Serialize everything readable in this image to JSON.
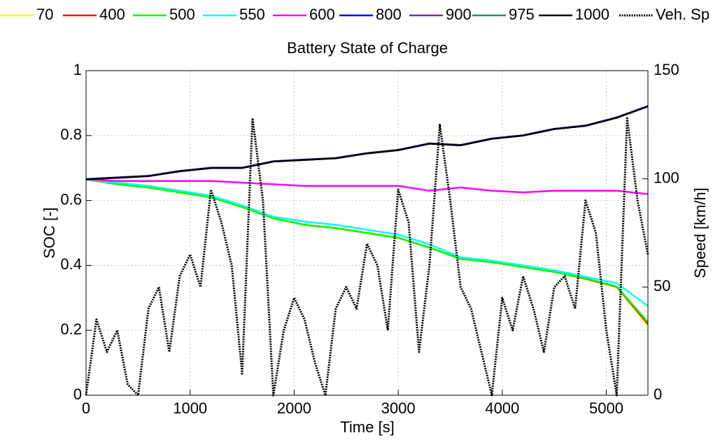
{
  "chart_data": {
    "type": "line",
    "title": "Battery State of Charge",
    "x_label": "Time [s]",
    "y_label": "SOC [-]",
    "y2_label": "Speed [km/h]",
    "x": [
      0,
      300,
      600,
      900,
      1200,
      1500,
      1800,
      2100,
      2400,
      2700,
      3000,
      3300,
      3600,
      3900,
      4200,
      4500,
      4800,
      5100,
      5400
    ],
    "xlim": [
      0,
      5400
    ],
    "xticks": [
      0,
      1000,
      2000,
      3000,
      4000,
      5000
    ],
    "ylim": [
      0,
      1
    ],
    "yticks": [
      0,
      0.2,
      0.4,
      0.6,
      0.8,
      1
    ],
    "y2lim": [
      0,
      150
    ],
    "y2ticks": [
      0,
      50,
      100,
      150
    ],
    "grid": true,
    "series": [
      {
        "name": "70",
        "color": "#ffff00",
        "values": [
          0.665,
          0.65,
          0.64,
          0.625,
          0.61,
          0.58,
          0.545,
          0.525,
          0.515,
          0.5,
          0.485,
          0.455,
          0.42,
          0.41,
          0.395,
          0.38,
          0.358,
          0.333,
          0.215
        ]
      },
      {
        "name": "400",
        "color": "#ff0000",
        "values": [
          0.665,
          0.65,
          0.64,
          0.625,
          0.61,
          0.58,
          0.545,
          0.525,
          0.515,
          0.5,
          0.485,
          0.455,
          0.42,
          0.41,
          0.395,
          0.38,
          0.359,
          0.334,
          0.22
        ]
      },
      {
        "name": "500",
        "color": "#00ff00",
        "values": [
          0.665,
          0.65,
          0.64,
          0.625,
          0.61,
          0.58,
          0.545,
          0.525,
          0.515,
          0.5,
          0.485,
          0.455,
          0.42,
          0.41,
          0.395,
          0.38,
          0.36,
          0.335,
          0.225
        ]
      },
      {
        "name": "550",
        "color": "#00ffff",
        "values": [
          0.665,
          0.655,
          0.645,
          0.63,
          0.615,
          0.585,
          0.55,
          0.535,
          0.525,
          0.51,
          0.495,
          0.465,
          0.425,
          0.415,
          0.4,
          0.385,
          0.365,
          0.345,
          0.275
        ]
      },
      {
        "name": "600",
        "color": "#ff00ff",
        "values": [
          0.665,
          0.66,
          0.66,
          0.66,
          0.66,
          0.655,
          0.65,
          0.645,
          0.645,
          0.645,
          0.645,
          0.63,
          0.64,
          0.63,
          0.625,
          0.63,
          0.63,
          0.63,
          0.62
        ]
      },
      {
        "name": "800",
        "color": "#0000ff",
        "values": [
          0.666,
          0.671,
          0.676,
          0.691,
          0.701,
          0.701,
          0.721,
          0.726,
          0.731,
          0.746,
          0.756,
          0.776,
          0.771,
          0.791,
          0.801,
          0.821,
          0.831,
          0.856,
          0.891
        ]
      },
      {
        "name": "900",
        "color": "#7030a0",
        "values": [
          0.665,
          0.67,
          0.675,
          0.69,
          0.7,
          0.7,
          0.72,
          0.725,
          0.73,
          0.745,
          0.755,
          0.775,
          0.77,
          0.79,
          0.8,
          0.82,
          0.83,
          0.855,
          0.89
        ]
      },
      {
        "name": "975",
        "color": "#2e8b57",
        "values": [
          0.665,
          0.67,
          0.675,
          0.69,
          0.7,
          0.7,
          0.72,
          0.725,
          0.73,
          0.745,
          0.755,
          0.775,
          0.77,
          0.79,
          0.8,
          0.82,
          0.83,
          0.855,
          0.89
        ]
      },
      {
        "name": "1000",
        "color": "#000000",
        "values": [
          0.665,
          0.67,
          0.675,
          0.69,
          0.7,
          0.7,
          0.72,
          0.725,
          0.73,
          0.745,
          0.755,
          0.775,
          0.77,
          0.79,
          0.8,
          0.82,
          0.83,
          0.855,
          0.89
        ]
      },
      {
        "name": "Veh. Sp",
        "color": "#000000",
        "dashed": true,
        "axis": "y2",
        "x": [
          0,
          100,
          200,
          300,
          400,
          500,
          600,
          700,
          800,
          900,
          1000,
          1100,
          1200,
          1300,
          1400,
          1500,
          1600,
          1700,
          1800,
          1900,
          2000,
          2100,
          2200,
          2300,
          2400,
          2500,
          2600,
          2700,
          2800,
          2900,
          3000,
          3100,
          3200,
          3300,
          3400,
          3500,
          3600,
          3700,
          3800,
          3900,
          4000,
          4100,
          4200,
          4300,
          4400,
          4500,
          4600,
          4700,
          4800,
          4900,
          5000,
          5100,
          5200,
          5300,
          5400
        ],
        "values": [
          0,
          35,
          20,
          30,
          5,
          0,
          40,
          50,
          20,
          55,
          65,
          50,
          95,
          80,
          60,
          10,
          128,
          90,
          0,
          30,
          45,
          35,
          15,
          0,
          40,
          50,
          40,
          70,
          60,
          30,
          95,
          80,
          20,
          60,
          125,
          90,
          50,
          40,
          20,
          0,
          45,
          30,
          55,
          40,
          20,
          50,
          55,
          40,
          90,
          75,
          30,
          0,
          128,
          90,
          65
        ]
      }
    ]
  }
}
